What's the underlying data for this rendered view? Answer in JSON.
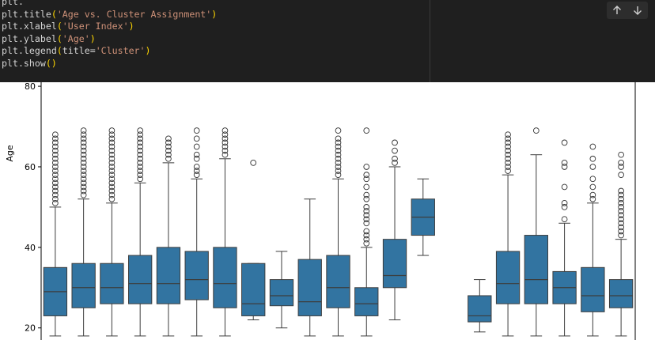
{
  "code_cell": {
    "lines": [
      [
        {
          "t": "plt.",
          "c": "id"
        },
        {
          "t": "",
          "c": "id"
        }
      ],
      [
        {
          "t": "plt.title",
          "c": "id"
        },
        {
          "t": "(",
          "c": "p"
        },
        {
          "t": "'Age vs. Cluster Assignment'",
          "c": "str"
        },
        {
          "t": ")",
          "c": "p"
        }
      ],
      [
        {
          "t": "plt.xlabel",
          "c": "id"
        },
        {
          "t": "(",
          "c": "p"
        },
        {
          "t": "'User Index'",
          "c": "str"
        },
        {
          "t": ")",
          "c": "p"
        }
      ],
      [
        {
          "t": "plt.ylabel",
          "c": "id"
        },
        {
          "t": "(",
          "c": "p"
        },
        {
          "t": "'Age'",
          "c": "str"
        },
        {
          "t": ")",
          "c": "p"
        }
      ],
      [
        {
          "t": "plt.legend",
          "c": "id"
        },
        {
          "t": "(",
          "c": "p"
        },
        {
          "t": "title=",
          "c": "id"
        },
        {
          "t": "'Cluster'",
          "c": "str"
        },
        {
          "t": ")",
          "c": "p"
        }
      ],
      [
        {
          "t": "plt.show",
          "c": "id"
        },
        {
          "t": "()",
          "c": "p"
        }
      ]
    ],
    "toolbar": {
      "up_icon": "arrow-up-icon",
      "down_icon": "arrow-down-icon"
    }
  },
  "chart_data": {
    "type": "box",
    "title": "",
    "xlabel": "",
    "ylabel": "Age",
    "ylim": [
      17,
      81
    ],
    "yticks": [
      "20",
      "40",
      "60",
      "80"
    ],
    "y_tick_values": [
      20,
      40,
      60,
      80
    ],
    "grid": false,
    "box_color": "#3274a1",
    "series": [
      {
        "whisker_low": 18,
        "q1": 23,
        "median": 29,
        "q3": 35,
        "whisker_high": 50,
        "outliers": [
          51,
          52,
          53,
          54,
          55,
          56,
          57,
          58,
          59,
          60,
          61,
          62,
          63,
          64,
          65,
          66,
          67,
          68
        ]
      },
      {
        "whisker_low": 18,
        "q1": 25,
        "median": 30,
        "q3": 36,
        "whisker_high": 52,
        "outliers": [
          53,
          54,
          55,
          56,
          57,
          58,
          59,
          60,
          61,
          62,
          63,
          64,
          65,
          66,
          67,
          68,
          69
        ]
      },
      {
        "whisker_low": 18,
        "q1": 26,
        "median": 30,
        "q3": 36,
        "whisker_high": 51,
        "outliers": [
          52,
          53,
          54,
          55,
          56,
          57,
          58,
          59,
          60,
          61,
          62,
          63,
          64,
          65,
          66,
          67,
          68,
          69
        ]
      },
      {
        "whisker_low": 18,
        "q1": 26,
        "median": 31,
        "q3": 38,
        "whisker_high": 56,
        "outliers": [
          57,
          58,
          59,
          60,
          61,
          62,
          63,
          64,
          65,
          66,
          67,
          68,
          69
        ]
      },
      {
        "whisker_low": 18,
        "q1": 26,
        "median": 31,
        "q3": 40,
        "whisker_high": 61,
        "outliers": [
          62,
          63,
          64,
          65,
          66,
          67
        ]
      },
      {
        "whisker_low": 18,
        "q1": 27,
        "median": 32,
        "q3": 39,
        "whisker_high": 57,
        "outliers": [
          58,
          59,
          60,
          62,
          63,
          65,
          67,
          69
        ]
      },
      {
        "whisker_low": 18,
        "q1": 25,
        "median": 31,
        "q3": 40,
        "whisker_high": 62,
        "outliers": [
          63,
          64,
          65,
          66,
          67,
          68,
          69
        ]
      },
      {
        "whisker_low": 22,
        "q1": 23,
        "median": 26,
        "q3": 36,
        "whisker_high": 36,
        "outliers": [
          61
        ]
      },
      {
        "whisker_low": 20,
        "q1": 25.5,
        "median": 28,
        "q3": 32,
        "whisker_high": 39,
        "outliers": []
      },
      {
        "whisker_low": 18,
        "q1": 23,
        "median": 26.5,
        "q3": 37,
        "whisker_high": 52,
        "outliers": []
      },
      {
        "whisker_low": 18,
        "q1": 25,
        "median": 30,
        "q3": 38,
        "whisker_high": 57,
        "outliers": [
          58,
          59,
          60,
          61,
          62,
          63,
          64,
          65,
          66,
          67,
          69
        ]
      },
      {
        "whisker_low": 18,
        "q1": 23,
        "median": 26,
        "q3": 30,
        "whisker_high": 40,
        "outliers": [
          41,
          42,
          43,
          44,
          46,
          47,
          48,
          49,
          50,
          52,
          53,
          55,
          57,
          58,
          60,
          69
        ]
      },
      {
        "whisker_low": 22,
        "q1": 30,
        "median": 33,
        "q3": 42,
        "whisker_high": 60,
        "outliers": [
          61,
          62,
          64,
          66
        ]
      },
      {
        "whisker_low": 38,
        "q1": 43,
        "median": 47.5,
        "q3": 52,
        "whisker_high": 57,
        "outliers": []
      },
      null,
      {
        "whisker_low": 19,
        "q1": 21.5,
        "median": 23,
        "q3": 28,
        "whisker_high": 32,
        "outliers": []
      },
      {
        "whisker_low": 18,
        "q1": 26,
        "median": 31,
        "q3": 39,
        "whisker_high": 58,
        "outliers": [
          59,
          60,
          61,
          62,
          63,
          64,
          65,
          66,
          67,
          68
        ]
      },
      {
        "whisker_low": 18,
        "q1": 26,
        "median": 32,
        "q3": 43,
        "whisker_high": 63,
        "outliers": [
          69
        ]
      },
      {
        "whisker_low": 18,
        "q1": 26,
        "median": 30,
        "q3": 34,
        "whisker_high": 46,
        "outliers": [
          47,
          50,
          51,
          55,
          60,
          61,
          66
        ]
      },
      {
        "whisker_low": 18,
        "q1": 24,
        "median": 28,
        "q3": 35,
        "whisker_high": 51,
        "outliers": [
          52,
          53,
          55,
          57,
          60,
          62,
          65
        ]
      },
      {
        "whisker_low": 18,
        "q1": 25,
        "median": 28,
        "q3": 32,
        "whisker_high": 42,
        "outliers": [
          43,
          44,
          45,
          46,
          47,
          48,
          49,
          50,
          51,
          52,
          53,
          54,
          58,
          60,
          61,
          63
        ]
      }
    ]
  }
}
